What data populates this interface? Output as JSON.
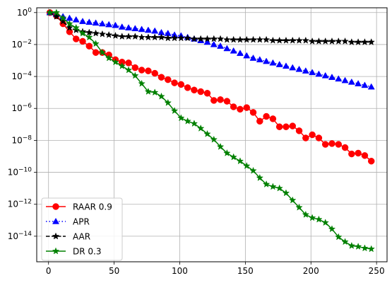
{
  "chart_data": {
    "type": "line",
    "title": "",
    "xlabel": "",
    "ylabel": "",
    "xlim": [
      -9,
      258
    ],
    "ylim_log10": [
      -15.6,
      0.3
    ],
    "yscale": "log",
    "grid": true,
    "legend_placement": "lower-left",
    "x_ticks": [
      {
        "value": 0,
        "label": "0"
      },
      {
        "value": 50,
        "label": "50"
      },
      {
        "value": 100,
        "label": "100"
      },
      {
        "value": 150,
        "label": "150"
      },
      {
        "value": 200,
        "label": "200"
      },
      {
        "value": 250,
        "label": "250"
      }
    ],
    "y_ticks": [
      {
        "exp": 0,
        "base": "10",
        "sup": "0"
      },
      {
        "exp": -2,
        "base": "10",
        "sup": "−2"
      },
      {
        "exp": -4,
        "base": "10",
        "sup": "−4"
      },
      {
        "exp": -6,
        "base": "10",
        "sup": "−6"
      },
      {
        "exp": -8,
        "base": "10",
        "sup": "−8"
      },
      {
        "exp": -10,
        "base": "10",
        "sup": "−10"
      },
      {
        "exp": -12,
        "base": "10",
        "sup": "−12"
      },
      {
        "exp": -14,
        "base": "10",
        "sup": "−14"
      }
    ],
    "series": [
      {
        "name": "RAAR 0.9",
        "color": "#ff0000",
        "marker": "circle",
        "linestyle": "solid",
        "x": [
          1,
          6,
          11,
          16,
          21,
          26,
          31,
          36,
          41,
          46,
          51,
          56,
          61,
          66,
          71,
          76,
          81,
          86,
          91,
          96,
          101,
          106,
          111,
          116,
          121,
          126,
          131,
          136,
          141,
          146,
          151,
          156,
          161,
          166,
          171,
          176,
          181,
          186,
          191,
          196,
          201,
          206,
          211,
          216,
          221,
          226,
          231,
          236,
          241,
          246
        ],
        "log10y": [
          0,
          -0.2,
          -0.7,
          -1.2,
          -1.65,
          -1.8,
          -2.1,
          -2.5,
          -2.5,
          -2.65,
          -2.95,
          -3.1,
          -3.15,
          -3.45,
          -3.6,
          -3.65,
          -3.8,
          -4.05,
          -4.2,
          -4.4,
          -4.5,
          -4.7,
          -4.85,
          -4.95,
          -5.05,
          -5.5,
          -5.45,
          -5.55,
          -5.9,
          -6.05,
          -5.95,
          -6.25,
          -6.8,
          -6.5,
          -6.65,
          -7.15,
          -7.15,
          -7.1,
          -7.4,
          -7.85,
          -7.65,
          -7.85,
          -8.25,
          -8.2,
          -8.25,
          -8.45,
          -8.85,
          -8.8,
          -8.95,
          -9.3
        ]
      },
      {
        "name": "APR",
        "color": "#0000ff",
        "marker": "triangle",
        "linestyle": "dotted",
        "x": [
          1,
          6,
          11,
          16,
          21,
          26,
          31,
          36,
          41,
          46,
          51,
          56,
          61,
          66,
          71,
          76,
          81,
          86,
          91,
          96,
          101,
          106,
          111,
          116,
          121,
          126,
          131,
          136,
          141,
          146,
          151,
          156,
          161,
          166,
          171,
          176,
          181,
          186,
          191,
          196,
          201,
          206,
          211,
          216,
          221,
          226,
          231,
          236,
          241,
          246
        ],
        "log10y": [
          0,
          -0.1,
          -0.25,
          -0.35,
          -0.45,
          -0.55,
          -0.6,
          -0.65,
          -0.7,
          -0.75,
          -0.8,
          -0.9,
          -0.95,
          -1.0,
          -1.05,
          -1.1,
          -1.15,
          -1.25,
          -1.3,
          -1.4,
          -1.45,
          -1.55,
          -1.65,
          -1.75,
          -1.85,
          -2.0,
          -2.1,
          -2.25,
          -2.4,
          -2.55,
          -2.7,
          -2.85,
          -2.95,
          -3.05,
          -3.15,
          -3.25,
          -3.35,
          -3.45,
          -3.55,
          -3.65,
          -3.75,
          -3.85,
          -3.95,
          -4.05,
          -4.15,
          -4.25,
          -4.35,
          -4.45,
          -4.55,
          -4.65
        ]
      },
      {
        "name": "AAR",
        "color": "#000000",
        "marker": "star",
        "linestyle": "dashed",
        "x": [
          1,
          6,
          11,
          16,
          21,
          26,
          31,
          36,
          41,
          46,
          51,
          56,
          61,
          66,
          71,
          76,
          81,
          86,
          91,
          96,
          101,
          106,
          111,
          116,
          121,
          126,
          131,
          136,
          141,
          146,
          151,
          156,
          161,
          166,
          171,
          176,
          181,
          186,
          191,
          196,
          201,
          206,
          211,
          216,
          221,
          226,
          231,
          236,
          241,
          246
        ],
        "log10y": [
          0,
          -0.25,
          -0.55,
          -0.95,
          -1.1,
          -1.2,
          -1.25,
          -1.3,
          -1.35,
          -1.4,
          -1.45,
          -1.5,
          -1.5,
          -1.5,
          -1.55,
          -1.55,
          -1.55,
          -1.55,
          -1.6,
          -1.6,
          -1.6,
          -1.6,
          -1.65,
          -1.65,
          -1.65,
          -1.65,
          -1.65,
          -1.7,
          -1.7,
          -1.7,
          -1.7,
          -1.7,
          -1.7,
          -1.7,
          -1.75,
          -1.75,
          -1.75,
          -1.75,
          -1.75,
          -1.75,
          -1.8,
          -1.8,
          -1.8,
          -1.8,
          -1.8,
          -1.8,
          -1.85,
          -1.85,
          -1.85,
          -1.85
        ]
      },
      {
        "name": "DR 0.3",
        "color": "#008000",
        "marker": "star",
        "linestyle": "solid",
        "x": [
          1,
          6,
          11,
          16,
          21,
          26,
          31,
          36,
          41,
          46,
          51,
          56,
          61,
          66,
          71,
          76,
          81,
          86,
          91,
          96,
          101,
          106,
          111,
          116,
          121,
          126,
          131,
          136,
          141,
          146,
          151,
          156,
          161,
          166,
          171,
          176,
          181,
          186,
          191,
          196,
          201,
          206,
          211,
          216,
          221,
          226,
          231,
          236,
          241,
          246
        ],
        "log10y": [
          0,
          0,
          -0.35,
          -0.7,
          -0.95,
          -1.3,
          -1.55,
          -1.95,
          -2.5,
          -2.85,
          -3.1,
          -3.35,
          -3.6,
          -3.95,
          -4.45,
          -4.95,
          -5.0,
          -5.25,
          -5.65,
          -6.15,
          -6.6,
          -6.8,
          -6.95,
          -7.25,
          -7.6,
          -7.95,
          -8.4,
          -8.8,
          -9.05,
          -9.3,
          -9.6,
          -9.9,
          -10.35,
          -10.75,
          -10.9,
          -11.0,
          -11.3,
          -11.75,
          -12.2,
          -12.65,
          -12.85,
          -12.95,
          -13.15,
          -13.55,
          -14.05,
          -14.35,
          -14.6,
          -14.65,
          -14.75,
          -14.8
        ]
      }
    ]
  }
}
